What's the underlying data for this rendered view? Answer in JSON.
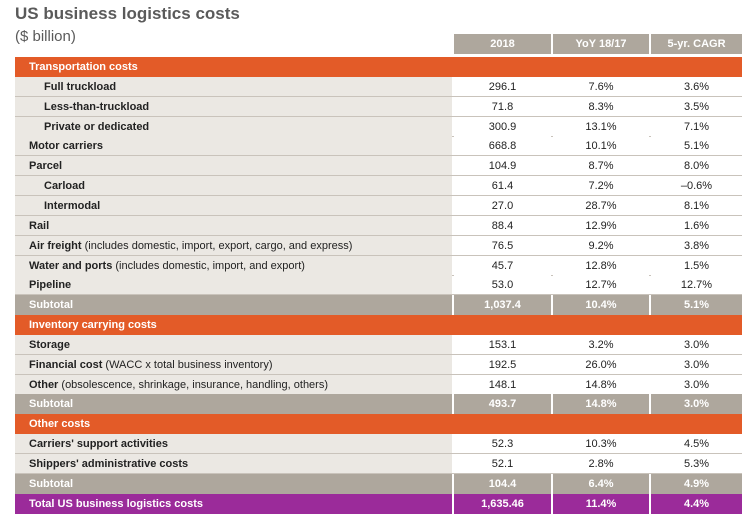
{
  "title": "US business logistics costs",
  "subtitle": "($ billion)",
  "columns": [
    "2018",
    "YoY 18/17",
    "5-yr. CAGR"
  ],
  "rows": [
    {
      "type": "section",
      "label": "Transportation costs"
    },
    {
      "type": "data",
      "indent": 1,
      "label": "Full truckload",
      "note": "",
      "v": [
        "296.1",
        "7.6%",
        "3.6%"
      ]
    },
    {
      "type": "data",
      "indent": 1,
      "label": "Less-than-truckload",
      "note": "",
      "v": [
        "71.8",
        "8.3%",
        "3.5%"
      ]
    },
    {
      "type": "data",
      "indent": 1,
      "label": "Private or dedicated",
      "note": "",
      "v": [
        "300.9",
        "13.1%",
        "7.1%"
      ]
    },
    {
      "type": "data",
      "indent": 0,
      "label": "Motor carriers",
      "note": "",
      "v": [
        "668.8",
        "10.1%",
        "5.1%"
      ]
    },
    {
      "type": "data",
      "indent": 0,
      "label": "Parcel",
      "note": "",
      "v": [
        "104.9",
        "8.7%",
        "8.0%"
      ]
    },
    {
      "type": "data",
      "indent": 1,
      "label": "Carload",
      "note": "",
      "v": [
        "61.4",
        "7.2%",
        "–0.6%"
      ]
    },
    {
      "type": "data",
      "indent": 1,
      "label": "Intermodal",
      "note": "",
      "v": [
        "27.0",
        "28.7%",
        "8.1%"
      ]
    },
    {
      "type": "data",
      "indent": 0,
      "label": "Rail",
      "note": "",
      "v": [
        "88.4",
        "12.9%",
        "1.6%"
      ]
    },
    {
      "type": "data",
      "indent": 0,
      "label": "Air freight",
      "note": " (includes domestic, import, export, cargo, and express)",
      "v": [
        "76.5",
        "9.2%",
        "3.8%"
      ]
    },
    {
      "type": "data",
      "indent": 0,
      "label": "Water and ports",
      "note": " (includes domestic, import, and export)",
      "v": [
        "45.7",
        "12.8%",
        "1.5%"
      ]
    },
    {
      "type": "data",
      "indent": 0,
      "label": "Pipeline",
      "note": "",
      "v": [
        "53.0",
        "12.7%",
        "12.7%"
      ]
    },
    {
      "type": "sub",
      "label": "Subtotal",
      "v": [
        "1,037.4",
        "10.4%",
        "5.1%"
      ]
    },
    {
      "type": "section",
      "label": "Inventory carrying costs"
    },
    {
      "type": "data",
      "indent": 0,
      "label": "Storage",
      "note": "",
      "v": [
        "153.1",
        "3.2%",
        "3.0%"
      ]
    },
    {
      "type": "data",
      "indent": 0,
      "label": "Financial cost",
      "note": " (WACC x total business inventory)",
      "v": [
        "192.5",
        "26.0%",
        "3.0%"
      ]
    },
    {
      "type": "data",
      "indent": 0,
      "label": "Other",
      "note": " (obsolescence, shrinkage, insurance, handling, others)",
      "v": [
        "148.1",
        "14.8%",
        "3.0%"
      ]
    },
    {
      "type": "sub",
      "label": "Subtotal",
      "v": [
        "493.7",
        "14.8%",
        "3.0%"
      ]
    },
    {
      "type": "section",
      "label": "Other costs"
    },
    {
      "type": "data",
      "indent": 0,
      "label": "Carriers' support activities",
      "note": "",
      "v": [
        "52.3",
        "10.3%",
        "4.5%"
      ]
    },
    {
      "type": "data",
      "indent": 0,
      "label": "Shippers' administrative costs",
      "note": "",
      "v": [
        "52.1",
        "2.8%",
        "5.3%"
      ]
    },
    {
      "type": "sub",
      "label": "Subtotal",
      "v": [
        "104.4",
        "6.4%",
        "4.9%"
      ]
    },
    {
      "type": "tot",
      "label": "Total US business logistics costs",
      "v": [
        "1,635.46",
        "11.4%",
        "4.4%"
      ]
    }
  ],
  "colors": {
    "section": "#e35b28",
    "header": "#aea79d",
    "total": "#9b2b9a",
    "row_bg": "#ebe8e3"
  }
}
